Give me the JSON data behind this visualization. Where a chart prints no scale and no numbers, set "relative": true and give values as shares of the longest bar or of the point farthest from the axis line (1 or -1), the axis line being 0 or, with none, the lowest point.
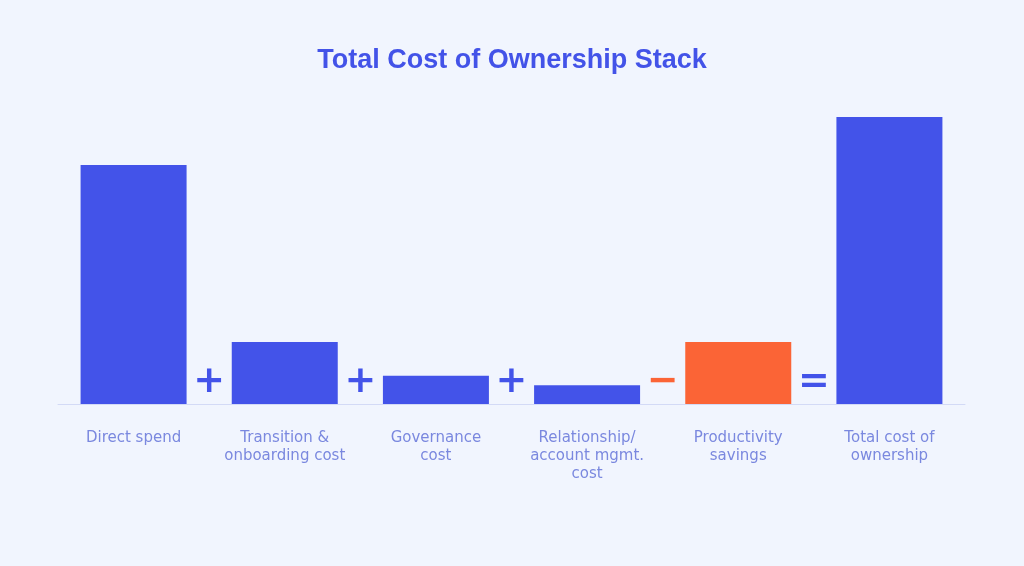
{
  "chart_data": {
    "type": "bar",
    "title": "Total Cost of Ownership Stack",
    "categories": [
      "Direct spend",
      "Transition &\nonboarding cost",
      "Governance\ncost",
      "Relationship/\naccount mgmt.\ncost",
      "Productivity\nsavings",
      "Total cost of\nownership"
    ],
    "values": [
      0.833,
      0.216,
      0.098,
      0.065,
      0.216,
      1
    ],
    "colors": [
      "#4353e9",
      "#4353e9",
      "#4353e9",
      "#4353e9",
      "#fb6436",
      "#4353e9"
    ],
    "relative": true,
    "annotations": [
      "+",
      "+",
      "+",
      "−",
      "="
    ]
  }
}
